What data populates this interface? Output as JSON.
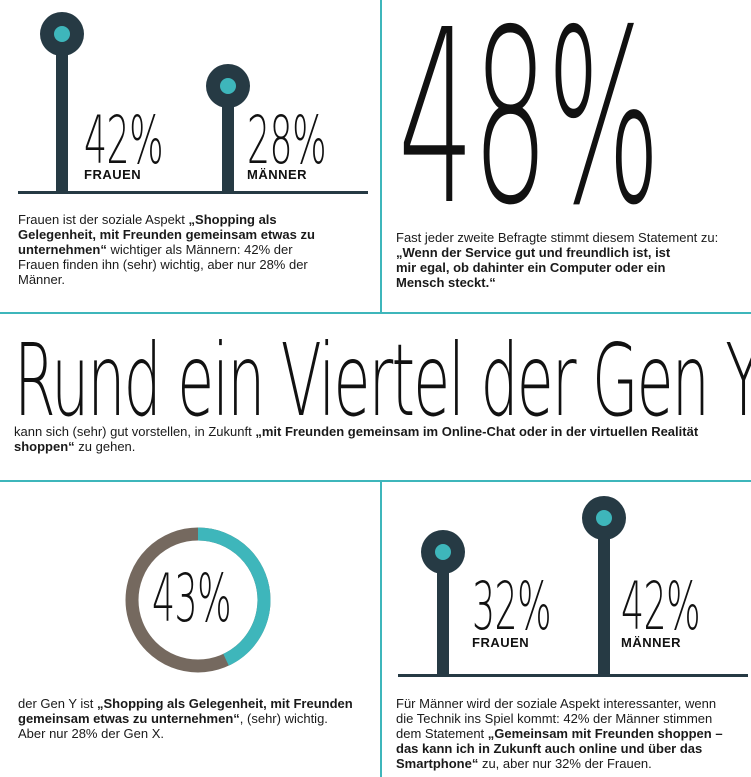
{
  "q1": {
    "women_pct": "42%",
    "women_label": "FRAUEN",
    "men_pct": "28%",
    "men_label": "MÄNNER",
    "women_value": 42,
    "men_value": 28,
    "text_a": "Frauen ist der soziale Aspekt ",
    "text_b": "„Shopping als Gelegenheit, mit Freunden gemeinsam etwas zu unternehmen“",
    "text_c": " wichtiger als Männern: 42% der Frauen finden ihn (sehr) wichtig, aber nur 28% der Männer."
  },
  "q2": {
    "big_pct": "48%",
    "value": 48,
    "text_a": "Fast jeder zweite Befragte stimmt diesem Statement zu:",
    "text_b": "„Wenn der Service gut und freundlich ist, ist mir egal, ob dahinter ein Computer oder ein Mensch steckt.“"
  },
  "q3": {
    "headline": "Rund ein Viertel der Gen Y",
    "text_a": "kann sich (sehr) gut vorstellen, in Zukunft ",
    "text_b": "„mit Freunden gemeinsam im Online-Chat oder in der virtuellen Realität shoppen“",
    "text_c": " zu gehen."
  },
  "q4": {
    "ring_pct": "43%",
    "value": 43,
    "text_a": "der Gen Y ist ",
    "text_b": "„Shopping als Gelegenheit, mit Freunden gemeinsam etwas zu unternehmen“",
    "text_c": ", (sehr) wichtig. Aber nur 28% der Gen X.",
    "colors": {
      "filled": "#3eb6bb",
      "rest": "#75695f"
    }
  },
  "q5": {
    "women_pct": "32%",
    "women_label": "FRAUEN",
    "men_pct": "42%",
    "men_label": "MÄNNER",
    "women_value": 32,
    "men_value": 42,
    "text_a": "Für Männer wird der soziale Aspekt interessanter, wenn die Technik ins Spiel kommt: 42% der Männer stimmen dem Statement ",
    "text_b": "„Gemeinsam mit Freunden shoppen – das kann ich in Zukunft auch online und über das Smartphone“",
    "text_c": " zu, aber nur 32% der Frauen."
  },
  "colors": {
    "teal": "#3eb6bb",
    "navy": "#263a44",
    "brown": "#75695f"
  }
}
